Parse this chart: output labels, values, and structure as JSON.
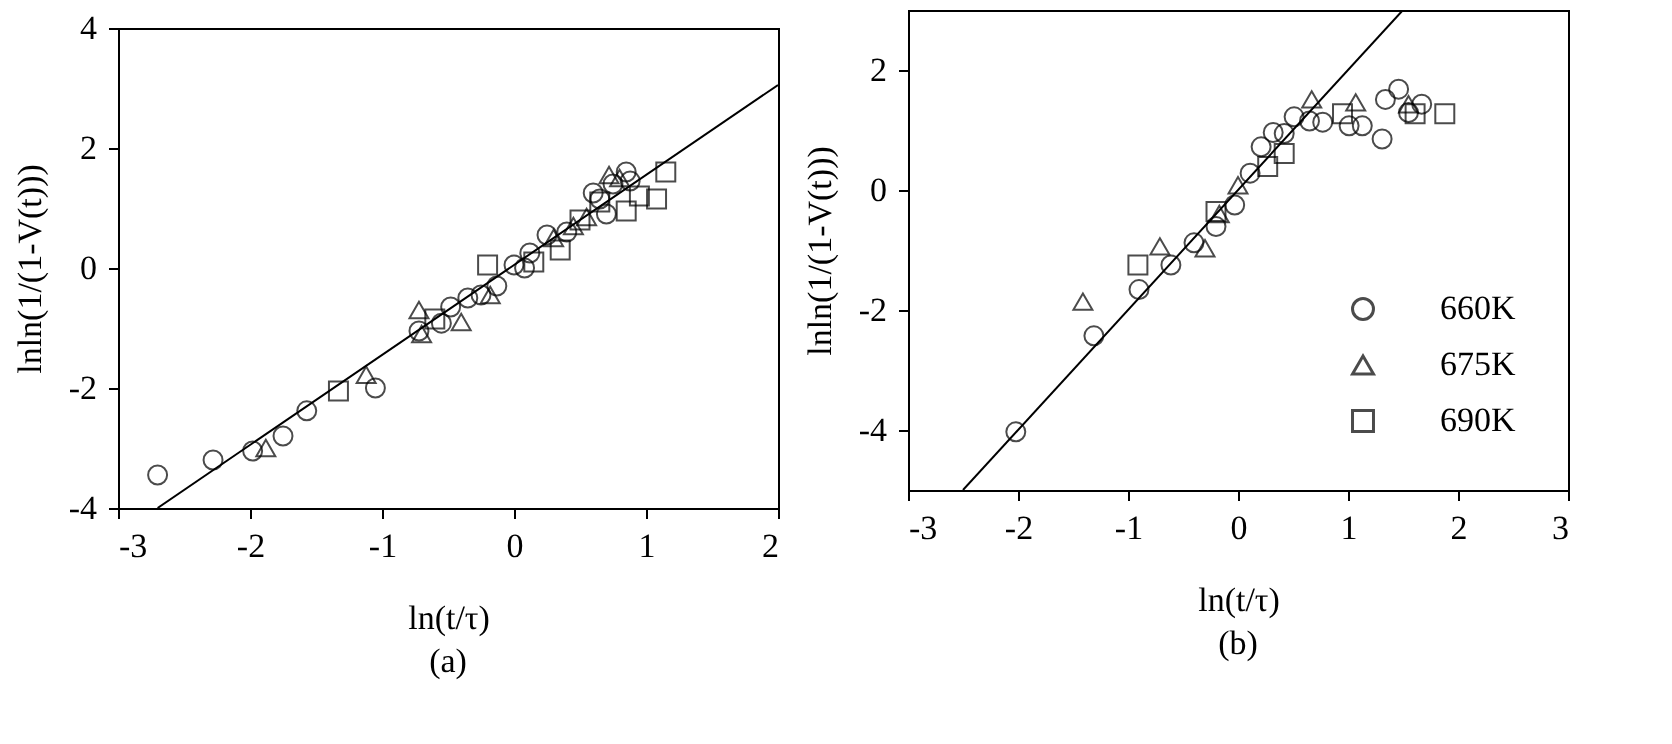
{
  "chart_data": [
    {
      "type": "scatter",
      "xlabel": "ln(t/τ)",
      "ylabel": "lnln(1/(1-V(t)))",
      "annotations": [
        "(a)"
      ],
      "xlim": [
        -3,
        2
      ],
      "ylim": [
        -4,
        4
      ],
      "xticks": [
        -3,
        -2,
        -1,
        0,
        1,
        2
      ],
      "yticks": [
        -4,
        -2,
        0,
        2,
        4
      ],
      "legend": false,
      "series": [
        {
          "color": "#000000",
          "marker": "circle",
          "x": [
            -2.7,
            -2.28,
            -1.98,
            -1.75,
            -1.57,
            -1.05,
            -0.72,
            -0.55,
            -0.48,
            -0.35,
            -0.25,
            -0.13,
            0,
            0.08,
            0.12,
            0.25,
            0.4,
            0.6,
            0.65,
            0.7,
            0.75,
            0.85,
            0.88
          ],
          "values": [
            -3.45,
            -3.2,
            -3.05,
            -2.8,
            -2.38,
            -2,
            -1.05,
            -0.92,
            -0.65,
            -0.5,
            -0.45,
            -0.3,
            0.05,
            0,
            0.25,
            0.55,
            0.6,
            1.25,
            1.15,
            0.9,
            1.4,
            1.6,
            1.45
          ]
        },
        {
          "color": "#000000",
          "marker": "triangle",
          "x": [
            -1.88,
            -1.12,
            -0.72,
            -0.7,
            -0.4,
            -0.18,
            0.3,
            0.45,
            0.55,
            0.72,
            0.8
          ],
          "values": [
            -3,
            -1.78,
            -0.7,
            -1.1,
            -0.9,
            -0.45,
            0.5,
            0.7,
            0.85,
            1.55,
            1.5
          ]
        },
        {
          "color": "#000000",
          "marker": "square",
          "x": [
            -1.33,
            -0.6,
            -0.2,
            0.15,
            0.35,
            0.5,
            0.65,
            0.85,
            0.95,
            1.08,
            1.15
          ],
          "values": [
            -2.05,
            -0.85,
            0.05,
            0.1,
            0.3,
            0.8,
            1.1,
            0.95,
            1.2,
            1.15,
            1.6
          ]
        },
        {
          "type": "line",
          "color": "#000000",
          "marker": "none",
          "x": [
            -2.7,
            2
          ],
          "values": [
            -4,
            3.05
          ]
        }
      ]
    },
    {
      "type": "scatter",
      "xlabel": "ln(t/τ)",
      "ylabel": "lnln(1/(1-V(t)))",
      "annotations": [
        "(b)"
      ],
      "xlim": [
        -3,
        3
      ],
      "ylim": [
        -5,
        3
      ],
      "xticks": [
        -3,
        -2,
        -1,
        0,
        1,
        2,
        3
      ],
      "yticks": [
        -4,
        -2,
        0,
        2
      ],
      "legend": "bottom right",
      "series": [
        {
          "name": "660K",
          "color": "#000000",
          "marker": "circle",
          "x": [
            -2.02,
            -1.31,
            -0.9,
            -0.61,
            -0.4,
            -0.2,
            -0.03,
            0.11,
            0.21,
            0.32,
            0.42,
            0.51,
            0.65,
            0.77,
            1.01,
            1.13,
            1.31,
            1.34,
            1.46,
            1.55,
            1.67
          ],
          "values": [
            -4.03,
            -2.43,
            -1.66,
            -1.25,
            -0.88,
            -0.61,
            -0.25,
            0.28,
            0.72,
            0.96,
            0.94,
            1.22,
            1.15,
            1.13,
            1.07,
            1.07,
            0.85,
            1.51,
            1.68,
            1.29,
            1.43
          ]
        },
        {
          "name": "675K",
          "color": "#000000",
          "marker": "triangle",
          "x": [
            -1.41,
            -0.71,
            -0.3,
            -0.17,
            0,
            0.67,
            1.07,
            1.55
          ],
          "values": [
            -1.86,
            -0.94,
            -0.97,
            -0.4,
            0.08,
            1.51,
            1.46,
            1.43
          ]
        },
        {
          "name": "690K",
          "color": "#000000",
          "marker": "square",
          "x": [
            -0.91,
            -0.2,
            0.27,
            0.42,
            0.95,
            1.61,
            1.88
          ],
          "values": [
            -1.25,
            -0.36,
            0.39,
            0.61,
            1.27,
            1.27,
            1.27
          ]
        },
        {
          "type": "line",
          "color": "#000000",
          "marker": "none",
          "x": [
            -2.5,
            1.5
          ],
          "values": [
            -5,
            3
          ]
        }
      ]
    }
  ]
}
